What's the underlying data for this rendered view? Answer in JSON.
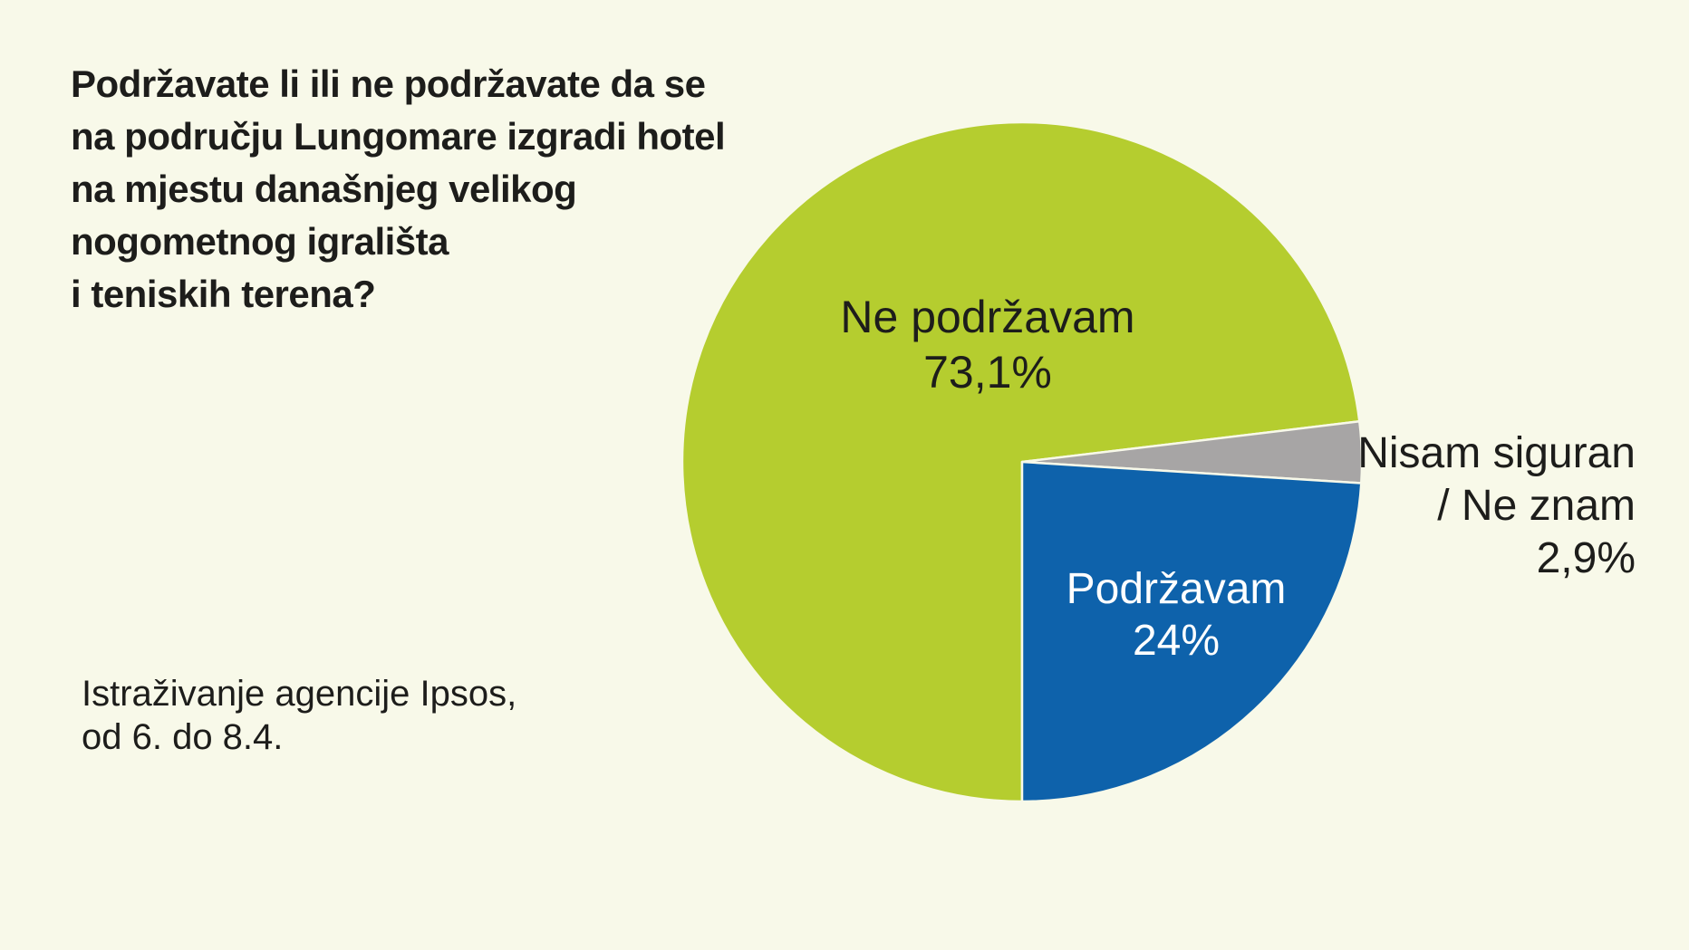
{
  "colors": {
    "background": "#f8f9e9",
    "text": "#1d1d1b",
    "inside_label_on_blue": "#ffffff"
  },
  "title": "Podržavate li ili ne podržavate da se\nna području Lungomare izgradi hotel\nna mjestu današnjeg velikog\nnogometnog igrališta\ni teniskih terena?",
  "source": "Istraživanje agencije Ipsos,\nod 6. do 8.4.",
  "chart_data": {
    "type": "pie",
    "title": "Podržavate li ili ne podržavate da se na području Lungomare izgradi hotel na mjestu današnjeg velikog nogometnog igrališta i teniskih terena?",
    "source": "Istraživanje agencije Ipsos, od 6. do 8.4.",
    "start_angle_deg_from_top": 180,
    "direction": "clockwise",
    "legend": "none",
    "slices": [
      {
        "label": "Ne podržavam",
        "value_pct": 73.1,
        "value_label": "73,1%",
        "color": "#b5cd2f",
        "label_color": "#1d1d1b",
        "label_position": "inside"
      },
      {
        "label": "Nisam siguran / Ne znam",
        "value_pct": 2.9,
        "value_label": "2,9%",
        "color": "#a7a5a5",
        "label_color": "#1d1d1b",
        "label_position": "outside-right"
      },
      {
        "label": "Podržavam",
        "value_pct": 24,
        "value_label": "24%",
        "color": "#0e62ab",
        "label_color": "#ffffff",
        "label_position": "inside"
      }
    ]
  },
  "labels": {
    "ne_podrzavam": {
      "name": "Ne podržavam",
      "value": "73,1%"
    },
    "podrzavam": {
      "name": "Podržavam",
      "value": "24%"
    },
    "nisam_siguran": {
      "line1": "Nisam siguran",
      "line2": "/ Ne znam",
      "value": "2,9%"
    }
  }
}
